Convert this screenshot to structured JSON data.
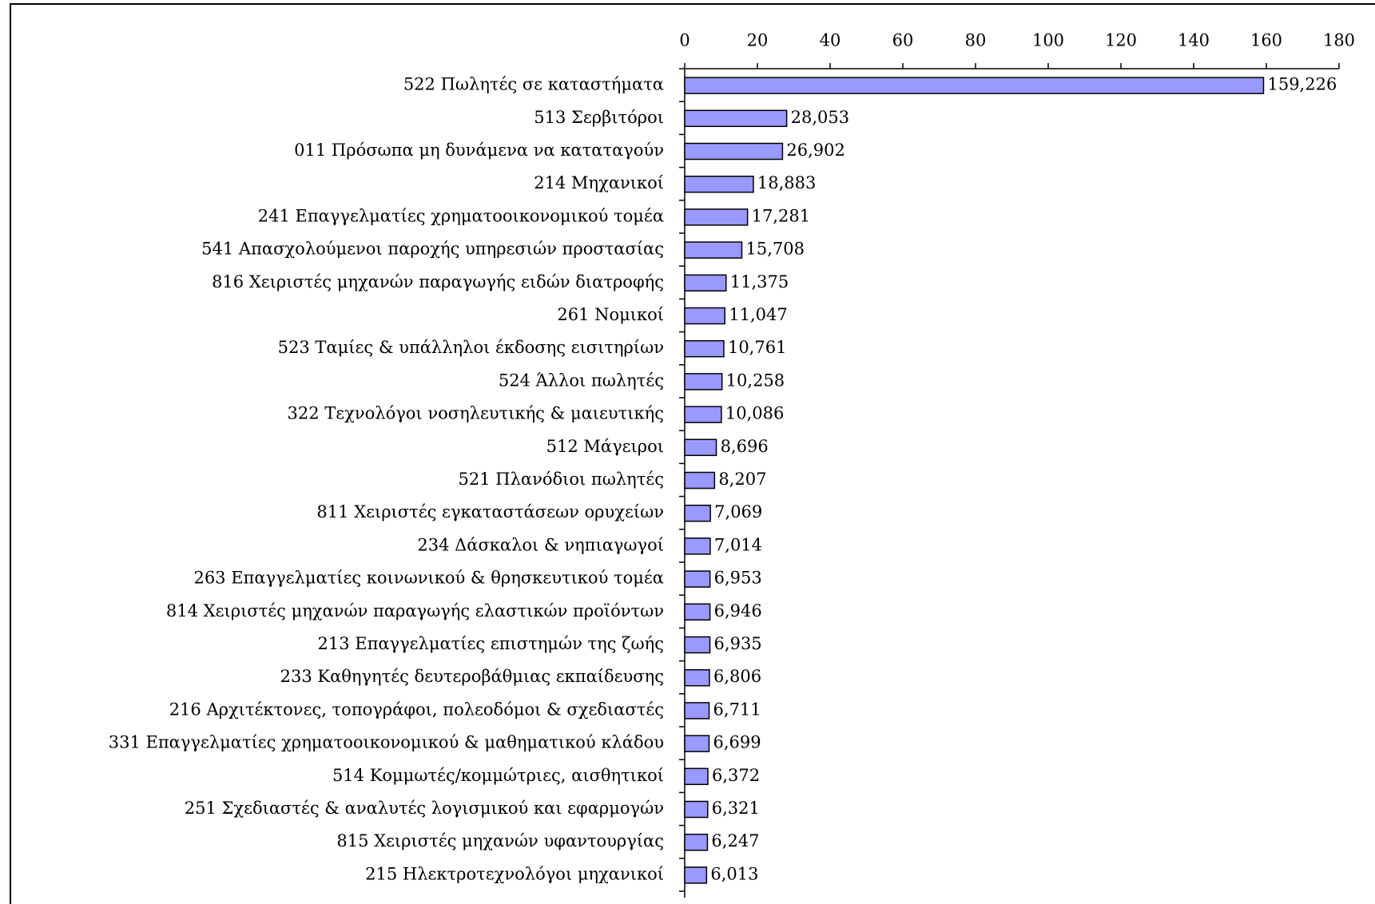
{
  "chart_data": {
    "type": "bar",
    "orientation": "horizontal",
    "color": "#9999ff",
    "categories": [
      "522 Πωλητές σε καταστήματα",
      "513 Σερβιτόροι",
      "011 Πρόσωπα μη δυνάμενα να καταταγούν",
      "214 Μηχανικοί",
      "241 Επαγγελματίες χρηματοοικονομικού τομέα",
      "541 Απασχολούμενοι παροχής υπηρεσιών προστασίας",
      "816 Χειριστές μηχανών παραγωγής ειδών διατροφής",
      "261 Νομικοί",
      "523 Ταμίες & υπάλληλοι έκδοσης εισιτηρίων",
      "524 Άλλοι πωλητές",
      "322 Τεχνολόγοι νοσηλευτικής & μαιευτικής",
      "512 Μάγειροι",
      "521 Πλανόδιοι πωλητές",
      "811 Χειριστές εγκαταστάσεων ορυχείων",
      "234 Δάσκαλοι & νηπιαγωγοί",
      "263 Επαγγελματίες κοινωνικού & θρησκευτικού τομέα",
      "814 Χειριστές μηχανών παραγωγής ελαστικών προϊόντων",
      "213 Επαγγελματίες επιστημών της ζωής",
      "233 Καθηγητές δευτεροβάθμιας εκπαίδευσης",
      "216 Αρχιτέκτονες, τοπογράφοι, πολεοδόμοι & σχεδιαστές",
      "331 Επαγγελματίες χρηματοοικονομικού & μαθηματικού κλάδου",
      "514 Κομμωτές/κομμώτριες, αισθητικοί",
      "251 Σχεδιαστές & αναλυτές λογισμικού και εφαρμογών",
      "815 Χειριστές μηχανών υφαντουργίας",
      "215 Ηλεκτροτεχνολόγοι μηχανικοί"
    ],
    "values": [
      159.226,
      28.053,
      26.902,
      18.883,
      17.281,
      15.708,
      11.375,
      11.047,
      10.761,
      10.258,
      10.086,
      8.696,
      8.207,
      7.069,
      7.014,
      6.953,
      6.946,
      6.935,
      6.806,
      6.711,
      6.699,
      6.372,
      6.321,
      6.247,
      6.013
    ],
    "value_labels": [
      "159,226",
      "28,053",
      "26,902",
      "18,883",
      "17,281",
      "15,708",
      "11,375",
      "11,047",
      "10,761",
      "10,258",
      "10,086",
      "8,696",
      "8,207",
      "7,069",
      "7,014",
      "6,953",
      "6,946",
      "6,935",
      "6,806",
      "6,711",
      "6,699",
      "6,372",
      "6,321",
      "6,247",
      "6,013"
    ],
    "xlim": [
      0,
      180
    ],
    "xticks": [
      0,
      20,
      40,
      60,
      80,
      100,
      120,
      140,
      160,
      180
    ]
  }
}
